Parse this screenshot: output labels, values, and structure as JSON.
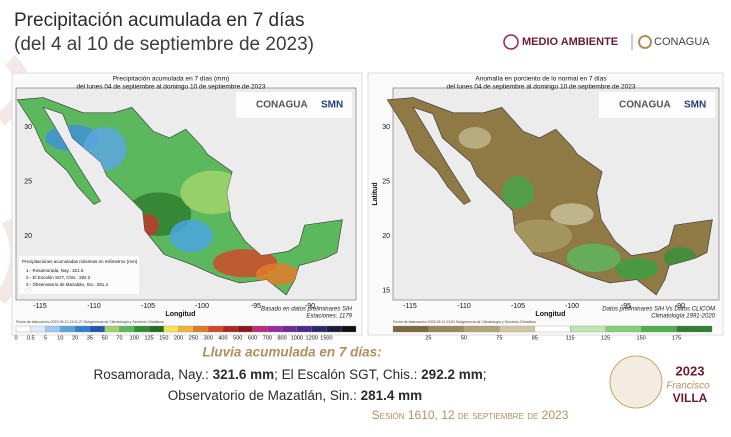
{
  "header": {
    "title_line1": "Precipitación acumulada en 7 días",
    "title_line2": "(del 4 al 10 de septiembre de 2023)",
    "logo_left": "MEDIO AMBIENTE",
    "logo_right": "CONAGUA"
  },
  "maps": [
    {
      "title": "Precipitación acumulada en 7 días (mm)",
      "subtitle": "del lunes 04 de septiembre al domingo 10 de septiembre de 2023",
      "logos": [
        "CONAGUA",
        "SMN"
      ],
      "x_ticks": [
        "-115",
        "-110",
        "-105",
        "-100",
        "-95",
        "-90"
      ],
      "y_ticks": [
        "30",
        "25",
        "20",
        "15"
      ],
      "x_label": "Longitud",
      "inset": {
        "title": "Precipitaciones acumuladas máximas en milímetros (mm)",
        "items": [
          "1.- Rosamorada, Nay.: 321.6",
          "2.- El Escalón SGT, Chis.: 292.2",
          "3.- Observatorio de Mazatlán, Sin.: 281.4"
        ]
      },
      "notes": [
        "Basado en datos preliminares SIH",
        "Estaciones: 1179"
      ],
      "footnote": "Fecha de elaboración 2023-09-11 13:41:27 Subgerencia de Climatología y Servicios Climáticos",
      "legend_ticks": [
        "0",
        "0.5",
        "5",
        "10",
        "20",
        "35",
        "50",
        "70",
        "100",
        "125",
        "150",
        "200",
        "250",
        "300",
        "400",
        "500",
        "600",
        "700",
        "800",
        "1000",
        "1200",
        "1500"
      ]
    },
    {
      "title": "Anomalía en porciento de lo normal en 7 días",
      "subtitle": "del lunes 04 de septiembre al domingo 10 de septiembre de 2023",
      "logos": [
        "CONAGUA",
        "SMN"
      ],
      "x_ticks": [
        "-115",
        "-110",
        "-105",
        "-100",
        "-95",
        "-90"
      ],
      "y_ticks": [
        "30",
        "25",
        "20",
        "15"
      ],
      "x_label": "Longitud",
      "y_label": "Latitud",
      "notes": [
        "Datos preliminares SIH Vs Datos CLICOM",
        "Climatología 1991-2020"
      ],
      "footnote": "Fecha de elaboración 2023-09-11 13:51 Subgerencia de Climatología y Servicios Climáticos",
      "legend_ticks": [
        "25",
        "50",
        "75",
        "85",
        "115",
        "125",
        "150",
        "175"
      ]
    }
  ],
  "footer": {
    "heading": "Lluvia acumulada en 7 días:",
    "line1": [
      "Rosamorada, Nay.: ",
      "321.6 mm",
      "; El Escalón SGT, Chis.: ",
      "292.2 mm",
      ";"
    ],
    "line2": [
      "Observatorio de Mazatlán, Sin.: ",
      "281.4 mm"
    ],
    "session": "Sesión 1610, 12 de septiembre de 2023",
    "badge": [
      "2023",
      "Francisco",
      "VILLA"
    ]
  }
}
